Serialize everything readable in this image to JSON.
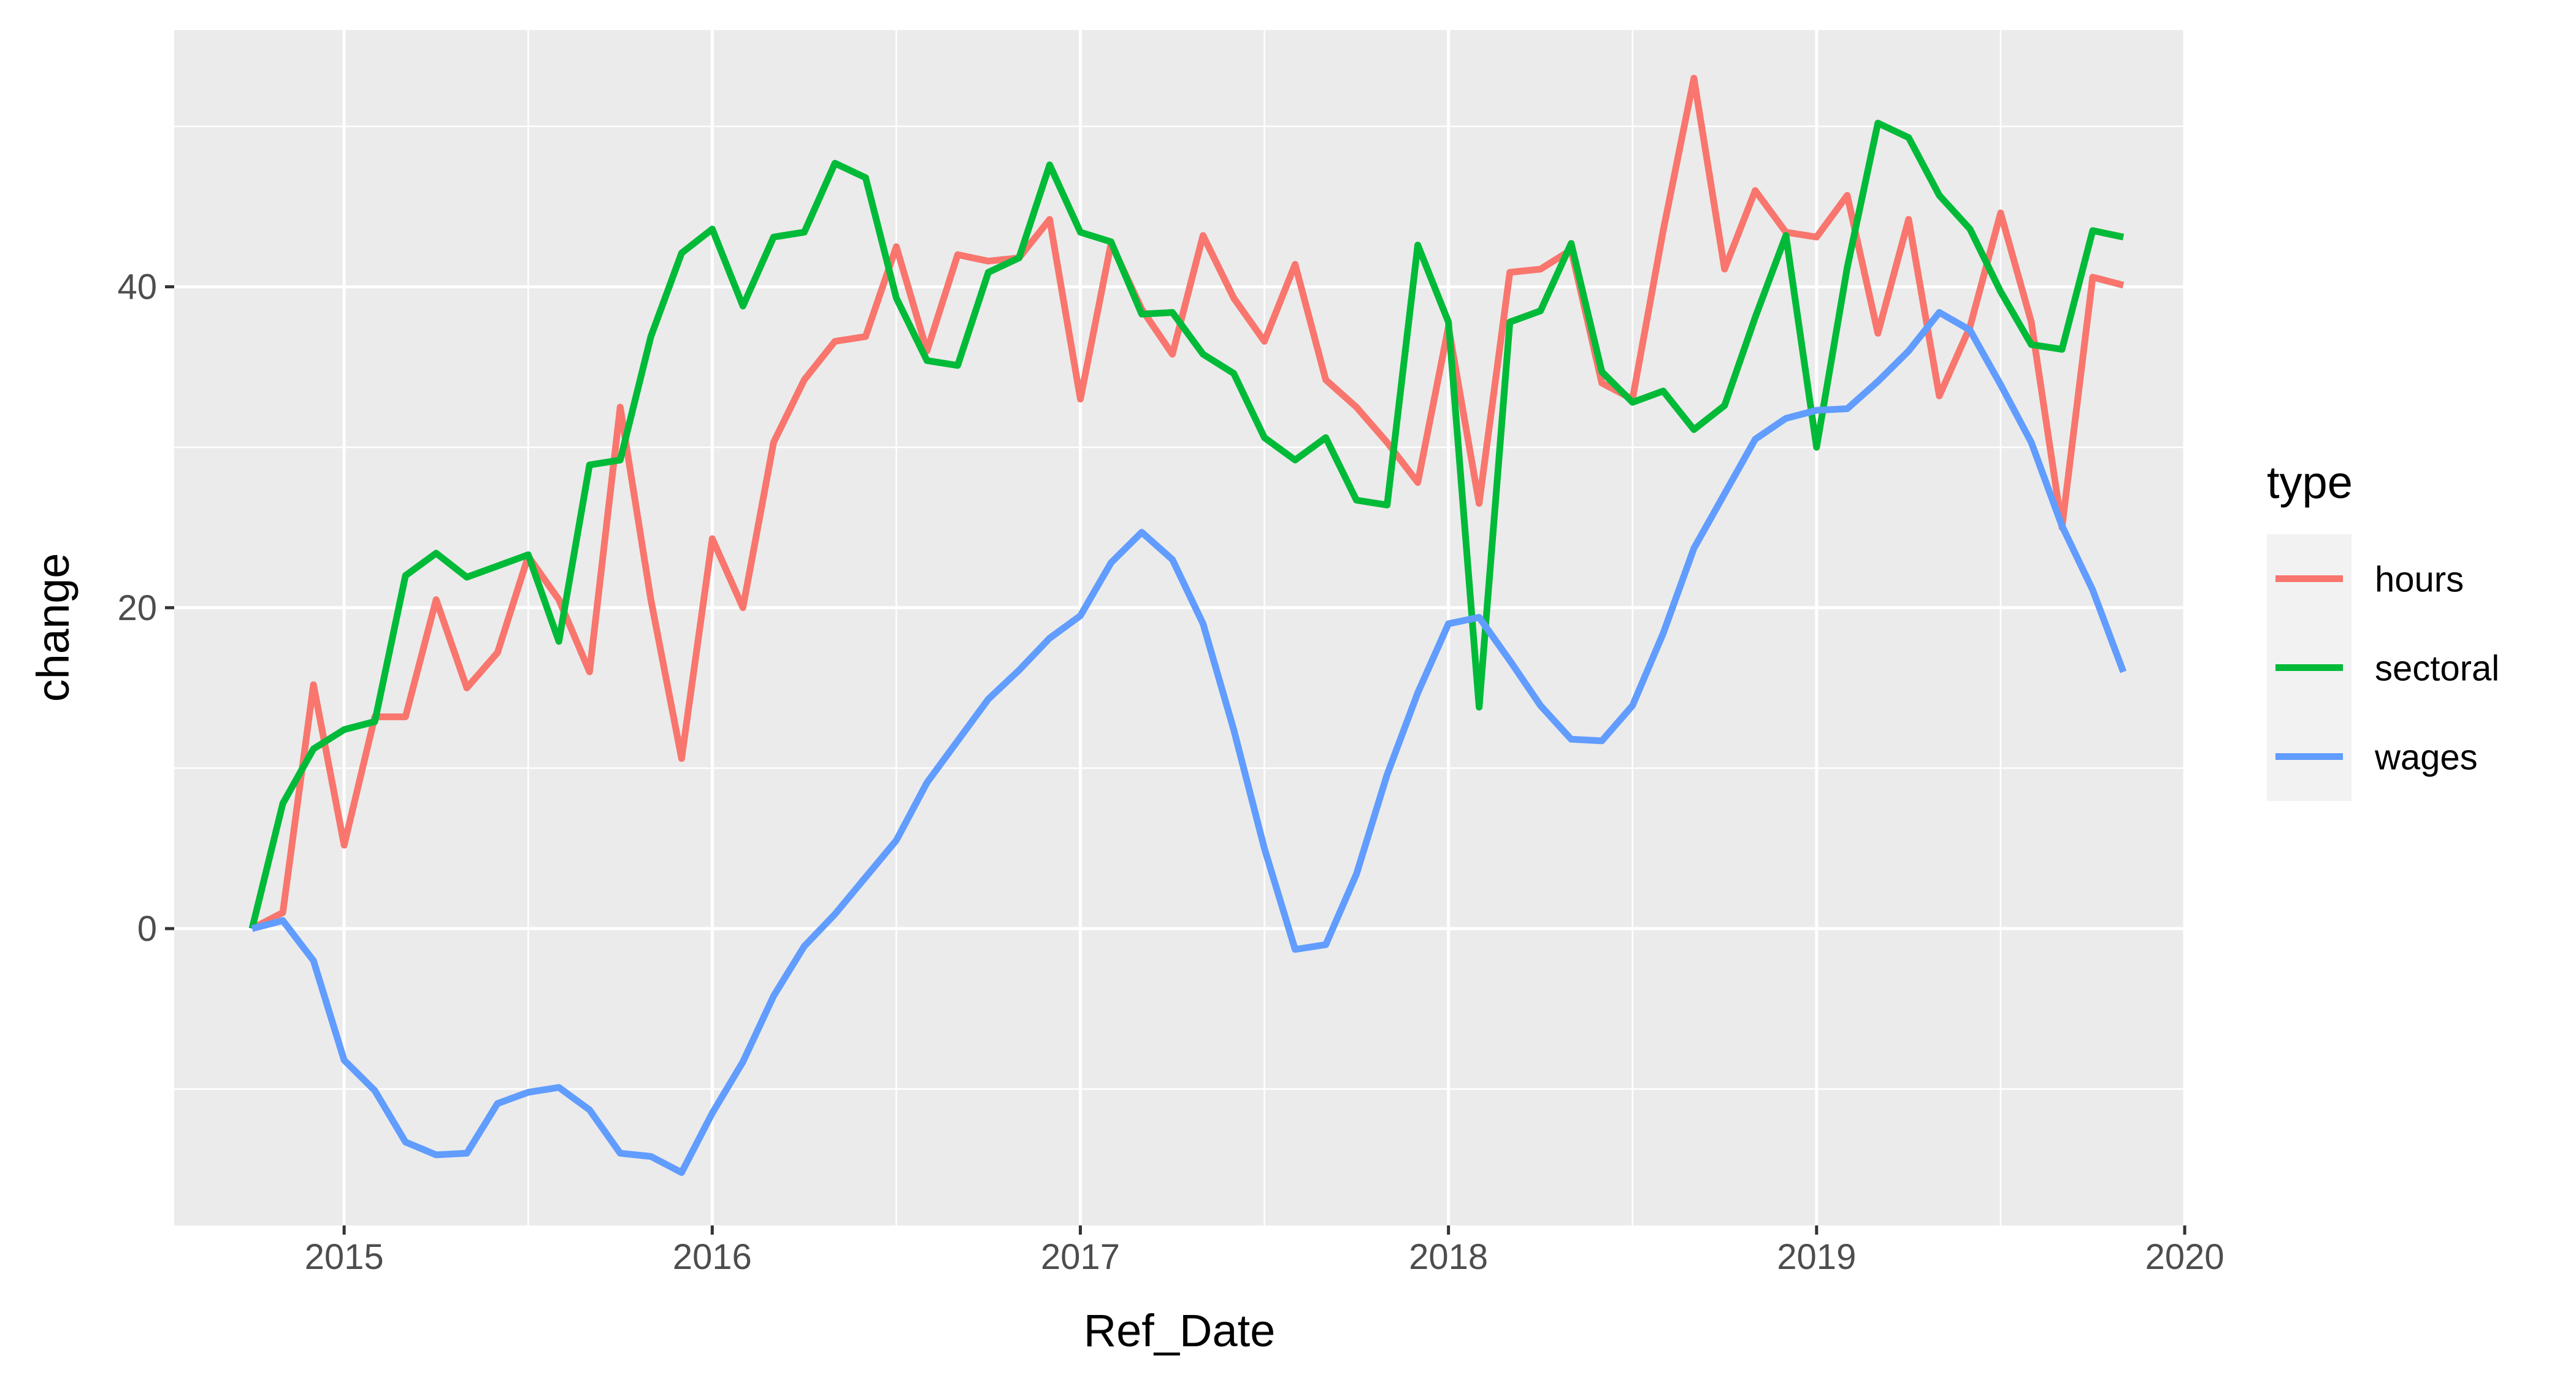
{
  "chart_data": {
    "type": "line",
    "xlabel": "Ref_Date",
    "ylabel": "change",
    "x_ticks": [
      "2015",
      "2016",
      "2017",
      "2018",
      "2019",
      "2020"
    ],
    "y_ticks": [
      0,
      20,
      40
    ],
    "xlim": [
      "2014-07-15",
      "2020-01-01"
    ],
    "ylim": [
      -18.5,
      56
    ],
    "grid": true,
    "legend": {
      "title": "type",
      "placement": "right"
    },
    "x": [
      "2014-10",
      "2014-11",
      "2014-12",
      "2015-01",
      "2015-02",
      "2015-03",
      "2015-04",
      "2015-05",
      "2015-06",
      "2015-07",
      "2015-08",
      "2015-09",
      "2015-10",
      "2015-11",
      "2015-12",
      "2016-01",
      "2016-02",
      "2016-03",
      "2016-04",
      "2016-05",
      "2016-06",
      "2016-07",
      "2016-08",
      "2016-09",
      "2016-10",
      "2016-11",
      "2016-12",
      "2017-01",
      "2017-02",
      "2017-03",
      "2017-04",
      "2017-05",
      "2017-06",
      "2017-07",
      "2017-08",
      "2017-09",
      "2017-10",
      "2017-11",
      "2017-12",
      "2018-01",
      "2018-02",
      "2018-03",
      "2018-04",
      "2018-05",
      "2018-06",
      "2018-07",
      "2018-08",
      "2018-09",
      "2018-10",
      "2018-11",
      "2018-12",
      "2019-01",
      "2019-02",
      "2019-03",
      "2019-04",
      "2019-05",
      "2019-06",
      "2019-07",
      "2019-08",
      "2019-09",
      "2019-10",
      "2019-11"
    ],
    "series": [
      {
        "name": "hours",
        "color": "#F8766D",
        "values": [
          0,
          1,
          15.2,
          5.2,
          13.2,
          13.2,
          20.5,
          15,
          17.2,
          23.2,
          20.5,
          16,
          32.5,
          20.5,
          10.6,
          24.3,
          20,
          30.3,
          34.2,
          36.6,
          36.9,
          42.5,
          36,
          42,
          41.6,
          41.8,
          44.2,
          33,
          42.7,
          38.6,
          35.8,
          43.2,
          39.3,
          36.6,
          41.4,
          34.2,
          32.5,
          30.3,
          27.8,
          37.5,
          26.5,
          40.9,
          41.1,
          42.3,
          34,
          33,
          43.5,
          53,
          41.1,
          46,
          43.4,
          43.1,
          45.7,
          37.1,
          44.2,
          33.2,
          37.5,
          44.6,
          37.8,
          25,
          40.6,
          40.1
        ]
      },
      {
        "name": "sectoral",
        "color": "#00BA38",
        "values": [
          0,
          7.8,
          11.2,
          12.4,
          12.9,
          22,
          23.4,
          21.9,
          22.6,
          23.3,
          17.9,
          28.9,
          29.2,
          36.9,
          42.1,
          43.6,
          38.8,
          43.1,
          43.4,
          47.7,
          46.8,
          39.3,
          35.4,
          35.1,
          40.9,
          41.8,
          47.6,
          43.4,
          42.8,
          38.3,
          38.4,
          35.8,
          34.6,
          30.6,
          29.2,
          30.6,
          26.7,
          26.4,
          42.6,
          37.8,
          13.8,
          37.8,
          38.5,
          42.7,
          34.7,
          32.8,
          33.5,
          31.1,
          32.6,
          38.1,
          43.2,
          30,
          41.2,
          50.2,
          49.3,
          45.7,
          43.6,
          39.7,
          36.4,
          36.1,
          43.5,
          43.1
        ]
      },
      {
        "name": "wages",
        "color": "#619CFF",
        "values": [
          0,
          0.5,
          -2,
          -8.2,
          -10.1,
          -13.3,
          -14.1,
          -14,
          -10.9,
          -10.2,
          -9.9,
          -11.3,
          -14,
          -14.2,
          -15.2,
          -11.5,
          -8.3,
          -4.2,
          -1.1,
          0.9,
          3.2,
          5.5,
          9.1,
          11.7,
          14.3,
          16.1,
          18.1,
          19.5,
          22.8,
          24.7,
          23,
          19,
          12.4,
          5,
          -1.3,
          -1,
          3.4,
          9.6,
          14.7,
          19,
          19.4,
          16.7,
          13.9,
          11.8,
          11.7,
          13.9,
          18.4,
          23.7,
          27.1,
          30.5,
          31.8,
          32.3,
          32.4,
          34.1,
          36,
          38.4,
          37.3,
          33.9,
          30.3,
          25.1,
          21.1,
          16
        ]
      }
    ]
  }
}
